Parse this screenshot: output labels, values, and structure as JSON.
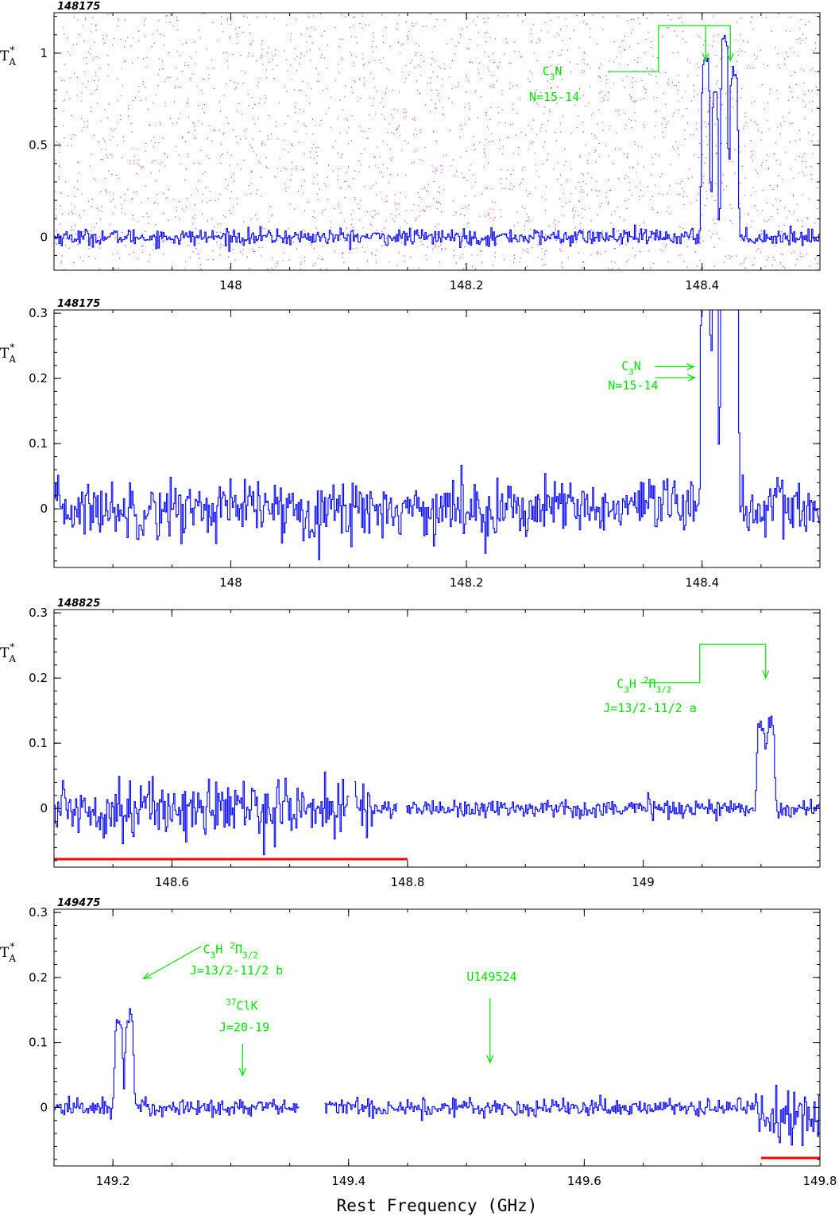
{
  "figure": {
    "xlabel": "Rest Frequency (GHz)",
    "colors": {
      "spectrum": "#0000ff",
      "annotation": "#00e000",
      "bar": "#ff0000",
      "dots": "#cc00cc",
      "axes": "#000000"
    }
  },
  "chart_data": [
    {
      "type": "line",
      "id": "148175",
      "xlim": [
        147.85,
        148.5
      ],
      "ylim": [
        -0.18,
        1.22
      ],
      "xticks": [
        148,
        148.2,
        148.4
      ],
      "xtick_labels": [
        "148",
        "148.2",
        "148.4"
      ],
      "yticks": [
        0,
        0.5,
        1
      ],
      "ytick_labels": [
        "0",
        "0.5",
        "1"
      ],
      "ylabel": "T",
      "ylabel_sup": "*",
      "ylabel_sub": "A",
      "noise": 0.022,
      "dots": true,
      "peaks": [
        {
          "x": 148.403,
          "y": 0.98,
          "w": 0.0035
        },
        {
          "x": 148.411,
          "y": 0.8,
          "w": 0.0025
        },
        {
          "x": 148.419,
          "y": 1.1,
          "w": 0.003
        },
        {
          "x": 148.427,
          "y": 0.9,
          "w": 0.0035
        }
      ],
      "gaps": [],
      "red_bars": [],
      "annotations": [
        {
          "kind": "bracket",
          "text": [
            "C3N",
            "N=15-14"
          ],
          "label_x": 148.273,
          "label_y": [
            0.88,
            0.74
          ],
          "line_y": 0.9,
          "line_from_x": 148.32,
          "bracket_x": 148.363,
          "bracket_y": 1.15,
          "targets": [
            148.403,
            148.424
          ],
          "target_y": 0.96
        }
      ]
    },
    {
      "type": "line",
      "id": "148175",
      "xlim": [
        147.85,
        148.5
      ],
      "ylim": [
        -0.09,
        0.305
      ],
      "xticks": [
        148,
        148.2,
        148.4
      ],
      "xtick_labels": [
        "148",
        "148.2",
        "148.4"
      ],
      "yticks": [
        0,
        0.1,
        0.2,
        0.3
      ],
      "ytick_labels": [
        "0",
        "0.1",
        "0.2",
        "0.3"
      ],
      "ylabel": "T",
      "ylabel_sup": "*",
      "ylabel_sub": "A",
      "noise": 0.022,
      "dots": false,
      "peaks": [
        {
          "x": 148.403,
          "y": 0.98,
          "w": 0.0035
        },
        {
          "x": 148.411,
          "y": 0.8,
          "w": 0.0025
        },
        {
          "x": 148.419,
          "y": 1.1,
          "w": 0.003
        },
        {
          "x": 148.427,
          "y": 0.9,
          "w": 0.0035
        }
      ],
      "gaps": [],
      "red_bars": [],
      "annotations": [
        {
          "kind": "arrows",
          "text": [
            "C3N",
            "N=15-14"
          ],
          "label_x": 148.34,
          "label_y": [
            0.213,
            0.183
          ],
          "arrows": [
            {
              "x1": 148.36,
              "y1": 0.218,
              "x2": 148.393,
              "y2": 0.218
            },
            {
              "x1": 148.36,
              "y1": 0.201,
              "x2": 148.394,
              "y2": 0.201
            }
          ]
        }
      ]
    },
    {
      "type": "line",
      "id": "148825",
      "xlim": [
        148.5,
        149.15
      ],
      "ylim": [
        -0.09,
        0.305
      ],
      "xticks": [
        148.6,
        148.8,
        149
      ],
      "xtick_labels": [
        "148.6",
        "148.8",
        "149"
      ],
      "yticks": [
        0,
        0.1,
        0.2,
        0.3
      ],
      "ytick_labels": [
        "0",
        "0.1",
        "0.2",
        "0.3"
      ],
      "ylabel": "T",
      "ylabel_sup": "*",
      "ylabel_sub": "A",
      "noise": 0.007,
      "noise_left": 0.022,
      "noise_split": 148.77,
      "dots": false,
      "peaks": [
        {
          "x": 149.1,
          "y": 0.13,
          "w": 0.0035
        },
        {
          "x": 149.108,
          "y": 0.13,
          "w": 0.0035
        }
      ],
      "gaps": [
        [
          148.751,
          148.755
        ],
        [
          148.791,
          148.799
        ]
      ],
      "red_bars": [
        [
          148.5,
          148.8
        ]
      ],
      "annotations": [
        {
          "kind": "bracket",
          "text": [
            "C3H 2Π3/2",
            "J=13/2-11/2 a"
          ],
          "label_x": 149.003,
          "label_y": [
            0.185,
            0.148
          ],
          "line_y": 0.193,
          "line_from_x": 148.998,
          "bracket_x": 149.048,
          "bracket_y": 0.252,
          "targets": [
            149.104
          ],
          "target_y": 0.2
        }
      ]
    },
    {
      "type": "line",
      "id": "149475",
      "xlim": [
        149.15,
        149.8
      ],
      "ylim": [
        -0.09,
        0.305
      ],
      "xticks": [
        149.2,
        149.4,
        149.6,
        149.8
      ],
      "xtick_labels": [
        "149.2",
        "149.4",
        "149.6",
        "149.8"
      ],
      "yticks": [
        0,
        0.1,
        0.2,
        0.3
      ],
      "ytick_labels": [
        "0",
        "0.1",
        "0.2",
        "0.3"
      ],
      "ylabel": "T",
      "ylabel_sup": "*",
      "ylabel_sub": "A",
      "noise": 0.007,
      "dots": false,
      "peaks": [
        {
          "x": 149.205,
          "y": 0.13,
          "w": 0.0035
        },
        {
          "x": 149.214,
          "y": 0.14,
          "w": 0.0035
        }
      ],
      "tail": {
        "from": 149.745,
        "noise": 0.025
      },
      "gaps": [
        [
          149.358,
          149.38
        ]
      ],
      "red_bars": [
        [
          149.75,
          149.8
        ]
      ],
      "annotations": [
        {
          "kind": "arrow_label",
          "text": [
            "C3H 2Π3/2",
            "J=13/2-11/2 b"
          ],
          "label_x": 149.302,
          "label_y": [
            0.237,
            0.205
          ],
          "arrow": {
            "x1": 149.275,
            "y1": 0.248,
            "x2": 149.226,
            "y2": 0.198
          }
        },
        {
          "kind": "arrow_label",
          "text": [
            "37ClK",
            "J=20-19"
          ],
          "label_x": 149.31,
          "label_y": [
            0.15,
            0.117
          ],
          "arrow": {
            "x1": 149.31,
            "y1": 0.098,
            "x2": 149.31,
            "y2": 0.049
          }
        },
        {
          "kind": "arrow_label",
          "text": [
            "U149524"
          ],
          "label_x": 149.52,
          "label_y": [
            0.195
          ],
          "arrow": {
            "x1": 149.52,
            "y1": 0.168,
            "x2": 149.52,
            "y2": 0.069
          }
        }
      ]
    }
  ]
}
